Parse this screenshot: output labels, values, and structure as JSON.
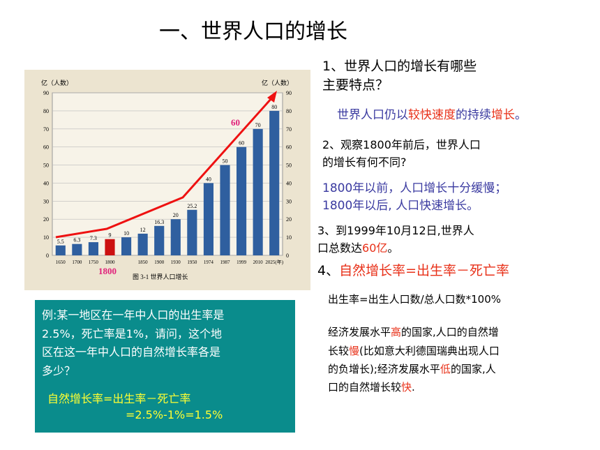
{
  "title": "一、世界人口的增长",
  "chart_data": {
    "type": "bar",
    "y_label": "亿（人数）",
    "y2_label": "亿（人数）",
    "caption": "图 3-1  世界人口增长",
    "categories": [
      "1650",
      "1700",
      "1750",
      "1800",
      null,
      "1850",
      "1900",
      "1930",
      "1950",
      "1974",
      "1987",
      "1999",
      "2010",
      "2025(年)"
    ],
    "values": [
      5.5,
      6.3,
      7.3,
      9,
      10,
      12,
      16.3,
      20,
      25.2,
      40,
      50,
      60,
      70,
      80
    ],
    "colors": [
      "#2f5f9f",
      "#2f5f9f",
      "#2f5f9f",
      "#cc1111",
      "#2f5f9f",
      "#2f5f9f",
      "#2f5f9f",
      "#2f5f9f",
      "#2f5f9f",
      "#2f5f9f",
      "#2f5f9f",
      "#2f5f9f",
      "#2f5f9f",
      "#2f5f9f"
    ],
    "ylim": [
      0,
      90
    ],
    "yticks": [
      0,
      10,
      20,
      30,
      40,
      50,
      60,
      70,
      80,
      90
    ],
    "grid": true,
    "annotations": [
      "60",
      "1800"
    ]
  },
  "q1": [
    "1、世界人口的增长有哪些",
    "主要特点？"
  ],
  "a1": [
    "世界人口仍以",
    "较快速度",
    "的持续",
    "增长",
    "。"
  ],
  "q2": [
    "2、观察1800年前后，世界人口",
    "的增长有何不同?"
  ],
  "a2": [
    "1800年以前，人口增长十分缓慢；",
    "1800年以后, 人口快速增长。"
  ],
  "q3": [
    "3、到1999年10月12日,世界人",
    "口总数达",
    "60亿",
    "。"
  ],
  "q4": [
    "4、",
    "自然增长率=出生率－死亡率"
  ],
  "formula": "出生率=出生人口数/总人口数*100%",
  "para": [
    [
      "经济发展水平",
      "高",
      "的国家,人口的自然增"
    ],
    [
      "长较",
      "慢",
      "(比如意大利德国瑞典出现人口"
    ],
    [
      "的负增长);经济发展水平",
      "低",
      "的国家,人"
    ],
    [
      "口的自然增长较",
      "快",
      "."
    ]
  ],
  "example": {
    "lines": [
      "例:某一地区在一年中人口的出生率是",
      "2.5%，死亡率是1%，请问，这个地",
      "区在这一年中人口的自然增长率各是",
      "多少？"
    ],
    "answer": [
      "自然增长率=出生率－死亡率",
      "=2.5%-1%=1.5%"
    ]
  }
}
